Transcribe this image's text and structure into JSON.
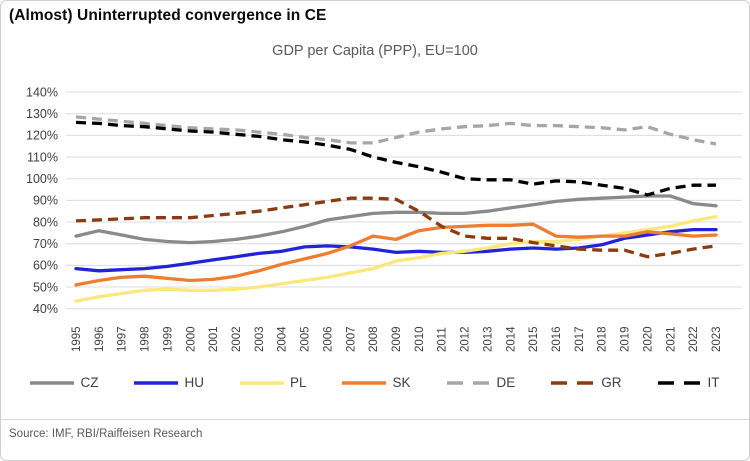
{
  "card": {
    "title": "(Almost) Uninterrupted convergence in CE",
    "source": "Source: IMF, RBI/Raiffeisen Research"
  },
  "style": {
    "grid_color": "#dcdcdc",
    "axis_text_color": "#404040",
    "subtitle_color": "#595959",
    "border_color": "#cfcfcf"
  },
  "chart_data": {
    "type": "line",
    "title": "GDP per Capita (PPP), EU=100",
    "xlabel": "",
    "ylabel": "",
    "ylim": [
      40,
      140
    ],
    "ytick_step": 10,
    "ytick_format": "percent",
    "grid": true,
    "legend_position": "bottom",
    "x": [
      "1995",
      "1996",
      "1997",
      "1998",
      "1999",
      "2000",
      "2001",
      "2002",
      "2003",
      "2004",
      "2005",
      "2006",
      "2007",
      "2008",
      "2009",
      "2010",
      "2011",
      "2012",
      "2013",
      "2014",
      "2015",
      "2016",
      "2017",
      "2018",
      "2019",
      "2020",
      "2021",
      "2022",
      "2023"
    ],
    "series": [
      {
        "name": "CZ",
        "color": "#8a8a8a",
        "dash": "solid",
        "values": [
          73.5,
          76,
          74,
          72,
          71,
          70.5,
          71,
          72,
          73.5,
          75.5,
          78,
          81,
          82.5,
          84,
          84.5,
          84.5,
          84,
          84,
          85,
          86.5,
          88,
          89.5,
          90.5,
          91,
          91.5,
          92,
          92,
          88.5,
          87.5
        ]
      },
      {
        "name": "HU",
        "color": "#2222d8",
        "dash": "solid",
        "values": [
          58.5,
          57.5,
          58,
          58.5,
          59.5,
          61,
          62.5,
          64,
          65.5,
          66.5,
          68.5,
          69,
          68.5,
          67.5,
          66,
          66.5,
          66,
          66,
          66.5,
          67.5,
          68,
          67.5,
          68,
          69.5,
          72.5,
          74,
          75.5,
          76.5,
          76.5
        ]
      },
      {
        "name": "PL",
        "color": "#fae87c",
        "dash": "solid",
        "values": [
          43.5,
          45.5,
          47,
          48.5,
          49,
          48.5,
          48.5,
          49,
          50,
          51.5,
          53,
          54.5,
          56.5,
          58.5,
          62,
          63.5,
          65.5,
          66.5,
          68,
          70,
          71,
          71,
          72,
          73.5,
          75,
          76.5,
          78,
          80.5,
          82.5
        ]
      },
      {
        "name": "SK",
        "color": "#ed7d31",
        "dash": "solid",
        "values": [
          51,
          53,
          54.5,
          55,
          54,
          53,
          53.5,
          55,
          57.5,
          60.5,
          63,
          65.5,
          69,
          73.5,
          72,
          76,
          77.5,
          78,
          78.5,
          78.5,
          79,
          73.5,
          73,
          73.5,
          73.5,
          75.5,
          74.5,
          73.5,
          74
        ]
      },
      {
        "name": "DE",
        "color": "#a6a6a6",
        "dash": "dashed",
        "values": [
          128.5,
          127.5,
          126.5,
          125.5,
          124.5,
          123.5,
          123,
          122.5,
          121.5,
          120.5,
          119,
          118,
          116.5,
          116.5,
          119,
          121.5,
          123,
          124,
          124.5,
          125.5,
          124.5,
          124.5,
          124,
          123.5,
          122.5,
          124,
          120.5,
          118,
          116
        ]
      },
      {
        "name": "GR",
        "color": "#8c3a10",
        "dash": "dashed",
        "values": [
          80.5,
          81,
          81.5,
          82,
          82,
          82,
          83,
          84,
          85,
          86.5,
          88,
          89.5,
          91,
          91,
          90.5,
          85,
          78,
          73.5,
          72.5,
          72.5,
          70.5,
          69,
          67.5,
          67,
          67,
          64,
          65.5,
          67.5,
          69
        ]
      },
      {
        "name": "IT",
        "color": "#000000",
        "dash": "dashed",
        "values": [
          126,
          125.5,
          124.5,
          124,
          123,
          122,
          121.5,
          120.5,
          119.5,
          118,
          117,
          115.5,
          113.5,
          110,
          107.5,
          105.5,
          103,
          100,
          99.5,
          99.5,
          97.5,
          99,
          98.5,
          97,
          95.5,
          92.5,
          95.5,
          97,
          97
        ]
      }
    ]
  }
}
